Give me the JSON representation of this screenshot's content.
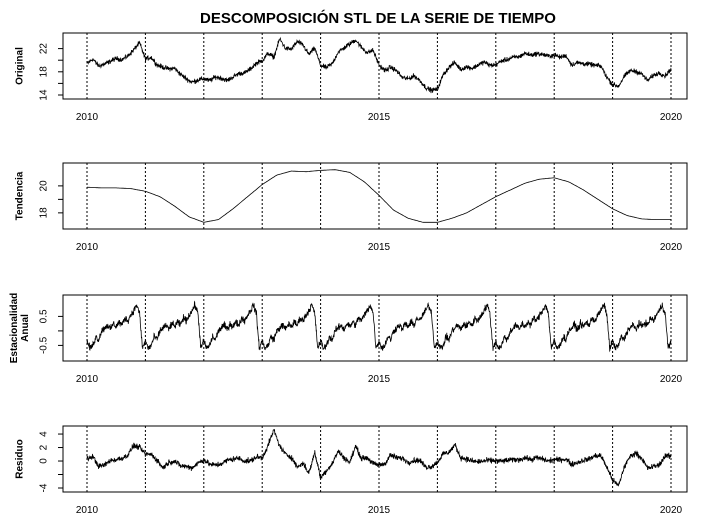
{
  "chart_data": {
    "title": "DESCOMPOSICIÓN STL DE LA SERIE DE TIEMPO",
    "x_range": [
      2010,
      2020
    ],
    "x_ticks": [
      "2010",
      "2015",
      "2020"
    ],
    "yearly_markers": [
      2010,
      2011,
      2012,
      2013,
      2014,
      2015,
      2016,
      2017,
      2018,
      2019,
      2020
    ],
    "grid": false,
    "panels": [
      {
        "id": "original",
        "type": "line",
        "ylabel": [
          "Original"
        ],
        "ylim": [
          14,
          24
        ],
        "y_ticks": [
          "14",
          "18",
          "22"
        ],
        "y_tick_values": [
          14,
          16,
          18,
          20,
          22
        ],
        "series": [
          {
            "x": [
              2010.0,
              2010.1,
              2010.2,
              2010.3,
              2010.4,
              2010.5,
              2010.6,
              2010.7,
              2010.8,
              2010.9,
              2011.0,
              2011.1,
              2011.2,
              2011.3,
              2011.4,
              2011.5,
              2011.6,
              2011.7,
              2011.8,
              2011.9,
              2012.0,
              2012.1,
              2012.2,
              2012.3,
              2012.4,
              2012.5,
              2012.6,
              2012.7,
              2012.8,
              2012.9,
              2013.0,
              2013.1,
              2013.2,
              2013.3,
              2013.4,
              2013.5,
              2013.6,
              2013.7,
              2013.8,
              2013.9,
              2014.0,
              2014.1,
              2014.2,
              2014.3,
              2014.4,
              2014.5,
              2014.6,
              2014.7,
              2014.8,
              2014.9,
              2015.0,
              2015.1,
              2015.2,
              2015.3,
              2015.4,
              2015.5,
              2015.6,
              2015.7,
              2015.8,
              2015.9,
              2016.0,
              2016.1,
              2016.2,
              2016.3,
              2016.4,
              2016.5,
              2016.6,
              2016.7,
              2016.8,
              2016.9,
              2017.0,
              2017.1,
              2017.2,
              2017.3,
              2017.4,
              2017.5,
              2017.6,
              2017.7,
              2017.8,
              2017.9,
              2018.0,
              2018.1,
              2018.2,
              2018.3,
              2018.4,
              2018.5,
              2018.6,
              2018.7,
              2018.8,
              2018.9,
              2019.0,
              2019.1,
              2019.2,
              2019.3,
              2019.4,
              2019.5,
              2019.6,
              2019.7,
              2019.8,
              2019.9,
              2020.0
            ],
            "y": [
              19.4,
              20.2,
              19.0,
              19.3,
              19.8,
              20.3,
              20.1,
              20.7,
              21.8,
              23.0,
              20.2,
              20.5,
              19.2,
              18.8,
              18.5,
              18.6,
              17.6,
              16.8,
              16.2,
              16.6,
              16.8,
              16.5,
              17.1,
              16.9,
              16.5,
              17.1,
              17.7,
              17.8,
              18.5,
              19.5,
              19.9,
              21.2,
              20.5,
              23.7,
              22.0,
              21.9,
              23.2,
              22.6,
              21.0,
              22.1,
              19.1,
              18.7,
              19.4,
              21.4,
              22.1,
              22.8,
              23.5,
              22.2,
              21.3,
              21.7,
              19.2,
              18.2,
              18.8,
              18.2,
              17.0,
              16.8,
              17.3,
              16.5,
              15.3,
              14.8,
              15.0,
              17.5,
              18.8,
              19.6,
              18.4,
              18.9,
              18.6,
              19.2,
              19.7,
              19.1,
              19.2,
              19.9,
              20.1,
              20.5,
              20.6,
              21.2,
              20.9,
              21.1,
              21.0,
              20.7,
              20.9,
              20.5,
              20.8,
              19.2,
              19.6,
              19.4,
              19.3,
              19.1,
              19.0,
              17.1,
              15.8,
              15.5,
              17.2,
              18.2,
              18.1,
              17.6,
              16.5,
              17.4,
              17.8,
              17.3,
              18.5
            ]
          }
        ]
      },
      {
        "id": "trend",
        "type": "line",
        "ylabel": [
          "Tendencia"
        ],
        "ylim": [
          17.1,
          21.4
        ],
        "y_ticks": [
          "18",
          "20"
        ],
        "y_tick_values": [
          18,
          19,
          20
        ],
        "series": [
          {
            "x": [
              2010.0,
              2010.25,
              2010.5,
              2010.75,
              2011.0,
              2011.25,
              2011.5,
              2011.75,
              2012.0,
              2012.25,
              2012.5,
              2012.75,
              2013.0,
              2013.25,
              2013.5,
              2013.75,
              2014.0,
              2014.25,
              2014.5,
              2014.75,
              2015.0,
              2015.25,
              2015.5,
              2015.75,
              2016.0,
              2016.25,
              2016.5,
              2016.75,
              2017.0,
              2017.25,
              2017.5,
              2017.75,
              2018.0,
              2018.25,
              2018.5,
              2018.75,
              2019.0,
              2019.25,
              2019.5,
              2019.75,
              2020.0
            ],
            "y": [
              19.9,
              19.85,
              19.85,
              19.8,
              19.6,
              19.2,
              18.5,
              17.7,
              17.3,
              17.5,
              18.3,
              19.2,
              20.1,
              20.8,
              21.1,
              21.05,
              21.15,
              21.2,
              21.0,
              20.3,
              19.3,
              18.2,
              17.6,
              17.3,
              17.3,
              17.6,
              18.0,
              18.6,
              19.2,
              19.7,
              20.2,
              20.5,
              20.6,
              20.3,
              19.7,
              19.0,
              18.3,
              17.8,
              17.55,
              17.5,
              17.5
            ]
          }
        ]
      },
      {
        "id": "seasonal",
        "type": "line",
        "ylabel": [
          "Estacionalidad",
          "Anual"
        ],
        "ylim": [
          -0.9,
          1.1
        ],
        "y_ticks": [
          "-0.5",
          "0.5"
        ],
        "y_tick_values": [
          -0.5,
          0,
          0.5
        ],
        "period_years": 1,
        "series": [
          {
            "x": [
              0.0,
              0.05,
              0.1,
              0.15,
              0.2,
              0.25,
              0.3,
              0.35,
              0.4,
              0.45,
              0.5,
              0.55,
              0.6,
              0.65,
              0.7,
              0.75,
              0.8,
              0.85,
              0.9,
              0.95,
              1.0
            ],
            "y": [
              -0.35,
              -0.6,
              -0.5,
              -0.2,
              -0.3,
              0.0,
              0.1,
              0.2,
              0.05,
              0.25,
              0.15,
              0.3,
              0.2,
              0.45,
              0.35,
              0.55,
              0.7,
              0.9,
              0.6,
              -0.6,
              -0.35
            ]
          }
        ]
      },
      {
        "id": "residual",
        "type": "line",
        "ylabel": [
          "Residuo"
        ],
        "ylim": [
          -4,
          4.6
        ],
        "y_ticks": [
          "-4",
          "0",
          "2",
          "4"
        ],
        "y_tick_values": [
          -4,
          -2,
          0,
          2,
          4
        ],
        "series": [
          {
            "x": [
              2010.0,
              2010.1,
              2010.2,
              2010.3,
              2010.4,
              2010.5,
              2010.6,
              2010.7,
              2010.8,
              2010.9,
              2011.0,
              2011.1,
              2011.2,
              2011.3,
              2011.4,
              2011.5,
              2011.6,
              2011.7,
              2011.8,
              2011.9,
              2012.0,
              2012.1,
              2012.2,
              2012.3,
              2012.4,
              2012.5,
              2012.6,
              2012.7,
              2012.8,
              2012.9,
              2013.0,
              2013.1,
              2013.2,
              2013.3,
              2013.4,
              2013.5,
              2013.6,
              2013.7,
              2013.8,
              2013.9,
              2014.0,
              2014.1,
              2014.2,
              2014.3,
              2014.4,
              2014.5,
              2014.6,
              2014.7,
              2014.8,
              2014.9,
              2015.0,
              2015.1,
              2015.2,
              2015.3,
              2015.4,
              2015.5,
              2015.6,
              2015.7,
              2015.8,
              2015.9,
              2016.0,
              2016.1,
              2016.2,
              2016.3,
              2016.4,
              2016.5,
              2016.6,
              2016.7,
              2016.8,
              2016.9,
              2017.0,
              2017.1,
              2017.2,
              2017.3,
              2017.4,
              2017.5,
              2017.6,
              2017.7,
              2017.8,
              2017.9,
              2018.0,
              2018.1,
              2018.2,
              2018.3,
              2018.4,
              2018.5,
              2018.6,
              2018.7,
              2018.8,
              2018.9,
              2019.0,
              2019.1,
              2019.2,
              2019.3,
              2019.4,
              2019.5,
              2019.6,
              2019.7,
              2019.8,
              2019.9,
              2020.0
            ],
            "y": [
              0.3,
              0.7,
              -0.8,
              -0.6,
              0.1,
              0.2,
              0.4,
              0.9,
              2.3,
              2.0,
              1.0,
              1.0,
              0.1,
              -1.0,
              -0.2,
              0.0,
              -0.7,
              -0.8,
              -1.0,
              -0.3,
              0.2,
              -0.5,
              -0.6,
              -0.4,
              0.1,
              0.3,
              0.4,
              0.0,
              0.0,
              0.6,
              0.5,
              2.3,
              4.6,
              2.2,
              1.0,
              0.6,
              -0.9,
              -0.3,
              -1.8,
              1.3,
              -2.5,
              -1.4,
              -0.4,
              1.5,
              0.5,
              -0.2,
              2.2,
              0.4,
              0.5,
              -0.4,
              -0.6,
              -0.4,
              0.9,
              0.5,
              0.4,
              -0.2,
              0.1,
              0.1,
              -0.9,
              -0.8,
              -0.2,
              1.1,
              1.3,
              2.4,
              0.5,
              0.3,
              0.0,
              -0.1,
              0.0,
              0.1,
              0.0,
              0.0,
              0.1,
              0.2,
              0.2,
              0.5,
              0.2,
              0.5,
              0.3,
              0.0,
              0.2,
              0.2,
              0.3,
              -0.5,
              -0.2,
              0.1,
              0.3,
              0.8,
              0.8,
              -0.9,
              -2.8,
              -3.7,
              -0.9,
              0.7,
              1.2,
              0.4,
              -1.1,
              -0.8,
              -0.6,
              0.8,
              0.7
            ]
          }
        ]
      }
    ]
  }
}
